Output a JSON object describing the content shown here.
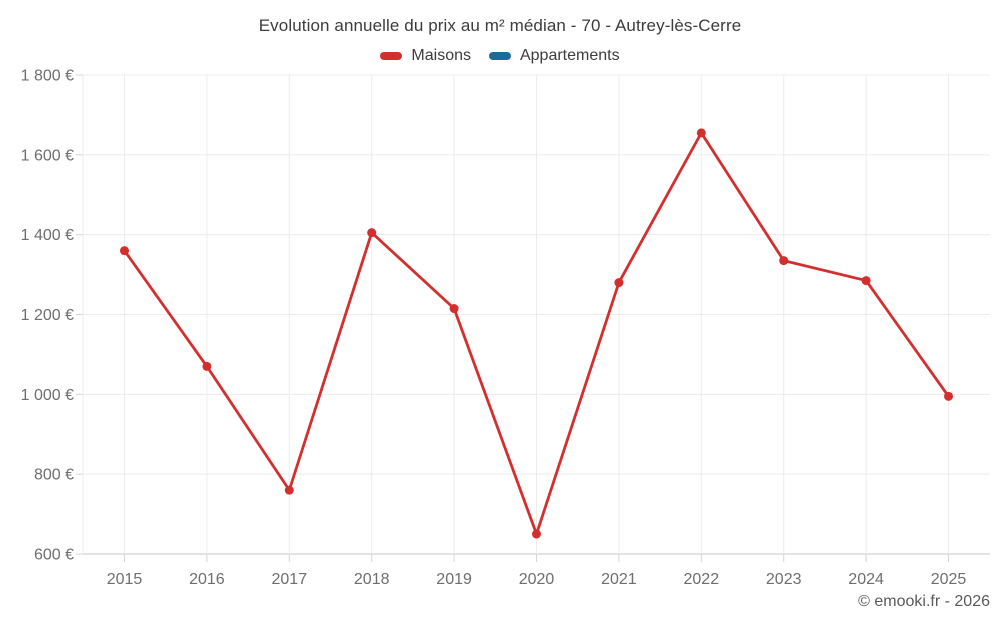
{
  "title": "Evolution annuelle du prix au m² médian - 70 - Autrey-lès-Cerre",
  "footer": "© emooki.fr - 2026",
  "colors": {
    "maisons": "#d32f2f",
    "appartements": "#1a6d9b",
    "grid_line": "#ececec",
    "axis_line": "#c9c9c9",
    "tick_mark": "#d6d6d6",
    "tick_label_text": "#6e6e6e",
    "title_text": "#3c3c3c",
    "footer_text": "#5a5a5a"
  },
  "legend": [
    {
      "label": "Maisons",
      "color": "#d32f2f"
    },
    {
      "label": "Appartements",
      "color": "#1a6d9b"
    }
  ],
  "chart_data": {
    "type": "line",
    "title": "Evolution annuelle du prix au m² médian - 70 - Autrey-lès-Cerre",
    "categories": [
      "2015",
      "2016",
      "2017",
      "2018",
      "2019",
      "2020",
      "2021",
      "2022",
      "2023",
      "2024",
      "2025"
    ],
    "series": [
      {
        "name": "Maisons",
        "color": "#d32f2f",
        "values": [
          1360,
          1070,
          760,
          1405,
          1215,
          650,
          1280,
          1655,
          1335,
          1285,
          995
        ]
      },
      {
        "name": "Appartements",
        "color": "#1a6d9b",
        "values": []
      }
    ],
    "xlabel": "",
    "ylabel": "",
    "ylim": [
      600,
      1800
    ],
    "ytick_values": [
      600,
      800,
      1000,
      1200,
      1400,
      1600,
      1800
    ],
    "ytick_labels": [
      "600 €",
      "800 €",
      "1 000 €",
      "1 200 €",
      "1 400 €",
      "1 600 €",
      "1 800 €"
    ],
    "grid": true,
    "legend_position": "top"
  }
}
